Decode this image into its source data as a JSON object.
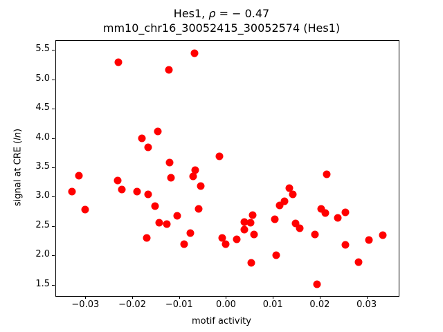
{
  "header": {
    "title_prefix": "Hes1, ",
    "title_rho": "ρ",
    "title_eq": " = − 0.47",
    "subtitle": "mm10_chr16_30052415_30052574 (Hes1)"
  },
  "axes_labels": {
    "xlabel": "motif activity",
    "ylabel_prefix": "signal at CRE (",
    "ylabel_italic": "ln",
    "ylabel_suffix": ")"
  },
  "chart_data": {
    "type": "scatter",
    "title": "Hes1, ρ = − 0.47",
    "subtitle": "mm10_chr16_30052415_30052574 (Hes1)",
    "xlabel": "motif activity",
    "ylabel": "signal at CRE (ln)",
    "marker_color": "#ff0000",
    "background_color": "#ffffff",
    "grid": false,
    "legend": false,
    "xlim": [
      -0.0364,
      0.0367
    ],
    "ylim": [
      1.32,
      5.67
    ],
    "x_tick_values": [
      -0.03,
      -0.02,
      -0.01,
      0.0,
      0.01,
      0.02,
      0.03
    ],
    "x_tick_labels": [
      "−0.03",
      "−0.02",
      "−0.01",
      "0.00",
      "0.01",
      "0.02",
      "0.03"
    ],
    "y_tick_values": [
      1.5,
      2.0,
      2.5,
      3.0,
      3.5,
      4.0,
      4.5,
      5.0,
      5.5
    ],
    "y_tick_labels": [
      "1.5",
      "2.0",
      "2.5",
      "3.0",
      "3.5",
      "4.0",
      "4.5",
      "5.0",
      "5.5"
    ],
    "points": [
      [
        -0.033,
        3.1
      ],
      [
        -0.0316,
        3.37
      ],
      [
        -0.0302,
        2.79
      ],
      [
        -0.0232,
        3.29
      ],
      [
        -0.0231,
        5.31
      ],
      [
        -0.0224,
        3.14
      ],
      [
        -0.0191,
        3.1
      ],
      [
        -0.0181,
        4.01
      ],
      [
        -0.0171,
        2.31
      ],
      [
        -0.0168,
        3.05
      ],
      [
        -0.0167,
        3.85
      ],
      [
        -0.0153,
        2.85
      ],
      [
        -0.0147,
        4.12
      ],
      [
        -0.0144,
        2.57
      ],
      [
        -0.0127,
        2.55
      ],
      [
        -0.0124,
        5.18
      ],
      [
        -0.0122,
        3.59
      ],
      [
        -0.0119,
        3.33
      ],
      [
        -0.0105,
        2.69
      ],
      [
        -0.0091,
        2.2
      ],
      [
        -0.0077,
        2.39
      ],
      [
        -0.0071,
        3.36
      ],
      [
        -0.0069,
        5.46
      ],
      [
        -0.0067,
        3.46
      ],
      [
        -0.006,
        2.8
      ],
      [
        -0.0056,
        3.19
      ],
      [
        -0.0015,
        3.7
      ],
      [
        -0.0009,
        2.31
      ],
      [
        -0.0002,
        2.21
      ],
      [
        0.0022,
        2.29
      ],
      [
        0.0037,
        2.45
      ],
      [
        0.0038,
        2.58
      ],
      [
        0.0051,
        2.57
      ],
      [
        0.0053,
        1.89
      ],
      [
        0.0055,
        2.7
      ],
      [
        0.0058,
        2.37
      ],
      [
        0.0103,
        2.63
      ],
      [
        0.0106,
        2.02
      ],
      [
        0.0113,
        2.86
      ],
      [
        0.0124,
        2.94
      ],
      [
        0.0133,
        3.16
      ],
      [
        0.0141,
        3.05
      ],
      [
        0.0147,
        2.56
      ],
      [
        0.0156,
        2.48
      ],
      [
        0.0189,
        2.37
      ],
      [
        0.0193,
        1.52
      ],
      [
        0.0202,
        2.81
      ],
      [
        0.021,
        2.73
      ],
      [
        0.0214,
        3.39
      ],
      [
        0.0237,
        2.65
      ],
      [
        0.0253,
        2.19
      ],
      [
        0.0254,
        2.75
      ],
      [
        0.0282,
        1.9
      ],
      [
        0.0304,
        2.28
      ],
      [
        0.0333,
        2.36
      ]
    ]
  }
}
